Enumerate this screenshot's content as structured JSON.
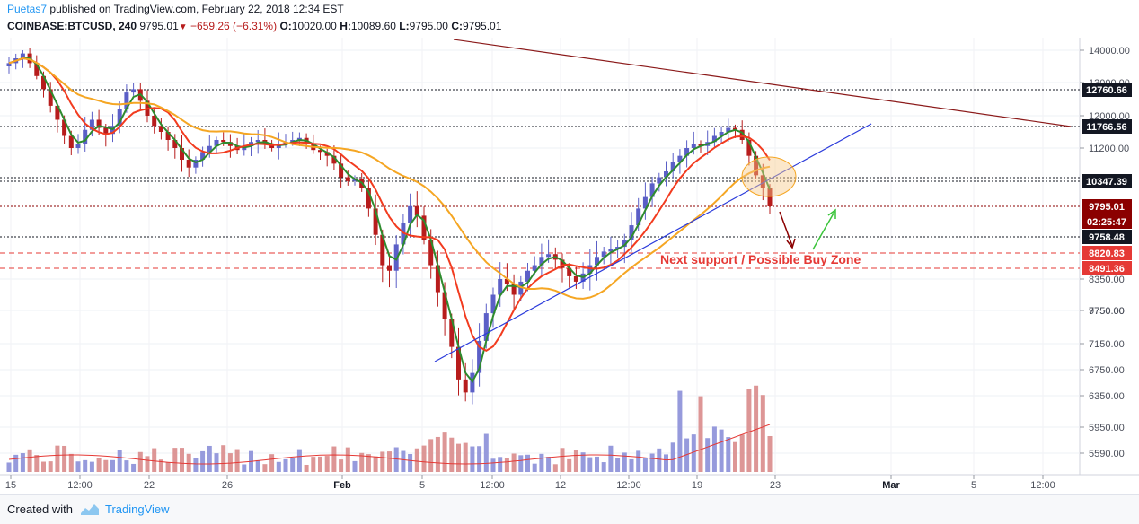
{
  "header": {
    "author": "Puetas7",
    "published_text": "published on TradingView.com, February 22, 2018 12:34 EST",
    "symbol": "COINBASE:BTCUSD, 240",
    "last": "9795.01",
    "change": "−659.26 (−6.31%)",
    "o_label": "O:",
    "o_val": "10020.00",
    "h_label": "H:",
    "h_val": "10089.60",
    "l_label": "L:",
    "l_val": "9795.00",
    "c_label": "C:",
    "c_val": "9795.01"
  },
  "footer": {
    "created": "Created with",
    "brand": "TradingView"
  },
  "colors": {
    "up": "#5b5fc7",
    "down": "#b71c1c",
    "ma_fast": "#2e8b2e",
    "ma_mid": "#f23b1f",
    "ma_slow": "#f5a623",
    "trend_blue": "#2b3bdb",
    "trend_dark": "#8b1a1a",
    "label_red": "#e53935"
  },
  "chart_data": {
    "type": "candlestick",
    "y_ticks": [
      "14000.00",
      "13000.00",
      "12000.00",
      "11200.00",
      "9750.00",
      "8350.00",
      "7750.00",
      "7150.00",
      "6750.00",
      "6350.00",
      "5950.00",
      "5590.00"
    ],
    "x_ticks": [
      "15",
      "12:00",
      "22",
      "26",
      "Feb",
      "5",
      "12:00",
      "12",
      "12:00",
      "19",
      "23",
      "Mar",
      "5",
      "12:00"
    ],
    "price_labels": [
      {
        "text": "12760.66",
        "style": "dark"
      },
      {
        "text": "11766.56",
        "style": "dark"
      },
      {
        "text": "10347.39",
        "style": "dark"
      },
      {
        "text": "9795.01",
        "style": "last"
      },
      {
        "text": "02:25:47",
        "style": "last"
      },
      {
        "text": "9758.48",
        "style": "dark"
      },
      {
        "text": "8820.83",
        "style": "red"
      },
      {
        "text": "8491.36",
        "style": "red"
      }
    ],
    "annotation": "Next support / Possible Buy Zone",
    "ohlc_close": [
      13600,
      13750,
      13900,
      13600,
      13200,
      12800,
      12300,
      11900,
      11500,
      11200,
      11300,
      11650,
      11900,
      11700,
      11550,
      11750,
      12200,
      12700,
      12800,
      12450,
      12000,
      11750,
      11600,
      11400,
      11200,
      10900,
      10700,
      10900,
      11100,
      11250,
      11400,
      11350,
      11250,
      11150,
      11250,
      11350,
      11400,
      11300,
      11200,
      11300,
      11350,
      11400,
      11450,
      11300,
      11150,
      11100,
      11000,
      10800,
      10450,
      10350,
      10400,
      10200,
      9750,
      9200,
      8600,
      8500,
      9000,
      9450,
      9800,
      9600,
      9100,
      8600,
      8100,
      7600,
      7100,
      6600,
      6400,
      6700,
      7200,
      7700,
      8050,
      8350,
      8250,
      8050,
      8300,
      8500,
      8600,
      8750,
      8800,
      8700,
      8550,
      8400,
      8300,
      8450,
      8600,
      8750,
      8850,
      8900,
      8950,
      9100,
      9400,
      9750,
      10000,
      10300,
      10450,
      10600,
      10850,
      11000,
      11200,
      11300,
      11250,
      11350,
      11500,
      11600,
      11700,
      11650,
      11400,
      11000,
      10500,
      10200,
      9795
    ]
  }
}
